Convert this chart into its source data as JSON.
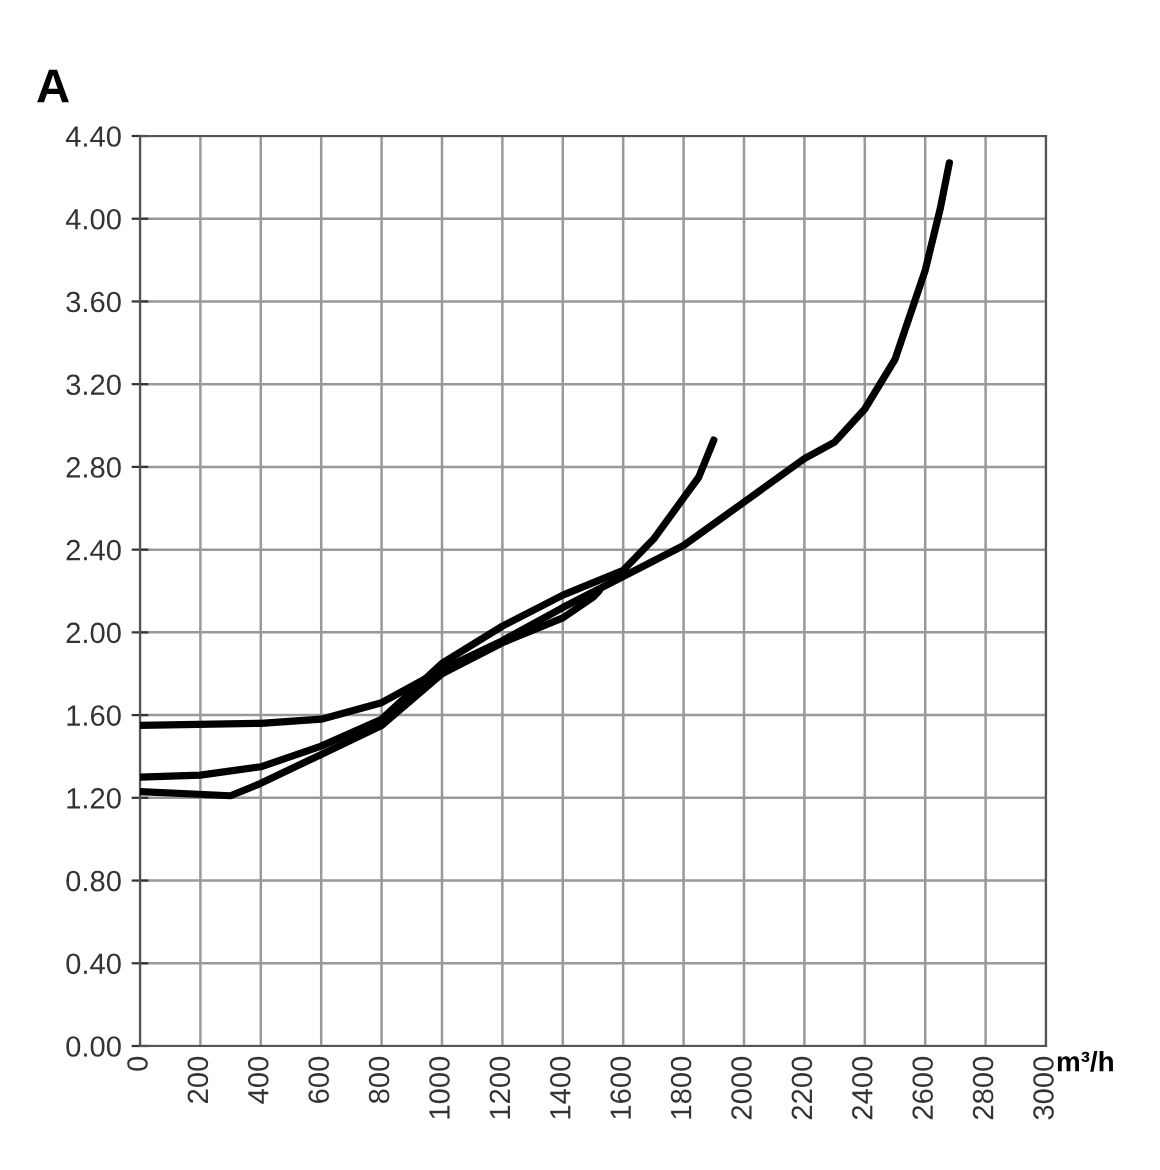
{
  "chart_data": {
    "type": "line",
    "title": "A",
    "xlabel": "m³/h",
    "grid": true,
    "marker": "none",
    "line_style": "solid",
    "xlim": [
      0,
      3000
    ],
    "xticks": [
      0,
      200,
      400,
      600,
      800,
      1000,
      1200,
      1400,
      1600,
      1800,
      2000,
      2200,
      2400,
      2600,
      2800,
      3000
    ],
    "ylim": [
      0,
      4.4
    ],
    "yticks": [
      {
        "value": 0,
        "label": "0.00"
      },
      {
        "value": 0.4,
        "label": "0.40"
      },
      {
        "value": 0.8,
        "label": "0.80"
      },
      {
        "value": 1.2,
        "label": "1.20"
      },
      {
        "value": 1.6,
        "label": "1.60"
      },
      {
        "value": 2.0,
        "label": "2.00"
      },
      {
        "value": 2.4,
        "label": "2.40"
      },
      {
        "value": 2.8,
        "label": "2.80"
      },
      {
        "value": 3.2,
        "label": "3.20"
      },
      {
        "value": 3.6,
        "label": "3.60"
      },
      {
        "value": 4.0,
        "label": "4.00"
      },
      {
        "value": 4.4,
        "label": "4.40"
      }
    ],
    "series": [
      {
        "color": "#000000",
        "x": [
          0,
          400,
          600,
          800,
          1000,
          1200,
          1400,
          1600,
          1800,
          2000,
          2200,
          2300,
          2400,
          2500,
          2600,
          2650,
          2680
        ],
        "values": [
          1.55,
          1.56,
          1.58,
          1.66,
          1.82,
          1.96,
          2.12,
          2.27,
          2.42,
          2.63,
          2.84,
          2.92,
          3.08,
          3.32,
          3.75,
          4.05,
          4.27
        ]
      },
      {
        "color": "#000000",
        "x": [
          0,
          200,
          400,
          600,
          800,
          1000,
          1200,
          1400,
          1600,
          1700,
          1800,
          1850,
          1900
        ],
        "values": [
          1.3,
          1.31,
          1.35,
          1.45,
          1.58,
          1.85,
          2.03,
          2.18,
          2.3,
          2.45,
          2.65,
          2.75,
          2.93
        ]
      },
      {
        "color": "#000000",
        "x": [
          0,
          300,
          400,
          600,
          800,
          1000,
          1200,
          1400,
          1500,
          1520
        ],
        "values": [
          1.23,
          1.21,
          1.27,
          1.41,
          1.55,
          1.8,
          1.95,
          2.07,
          2.17,
          2.2
        ]
      }
    ]
  }
}
